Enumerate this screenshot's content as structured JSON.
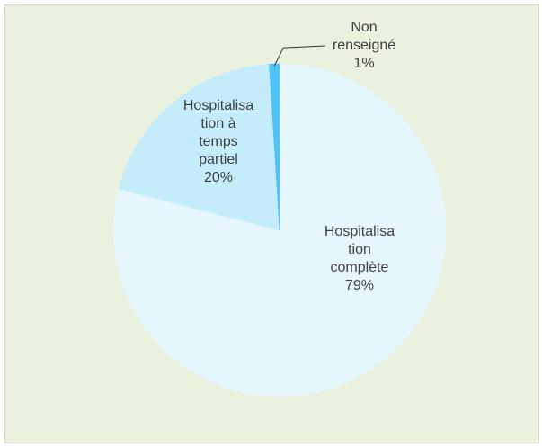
{
  "chart_data": {
    "type": "pie",
    "title": "",
    "slices": [
      {
        "label_lines": [
          "Hospitalisa",
          "tion",
          "complète"
        ],
        "percent_label": "79%",
        "value": 79,
        "color": "#e5f6fd"
      },
      {
        "label_lines": [
          "Hospitalisa",
          "tion à",
          "temps",
          "partiel"
        ],
        "percent_label": "20%",
        "value": 20,
        "color": "#c4ecfb"
      },
      {
        "label_lines": [
          "Non",
          "renseigné"
        ],
        "percent_label": "1%",
        "value": 1,
        "color": "#4fc3f7"
      }
    ],
    "start_angle_deg": 0,
    "direction": "clockwise",
    "background_color": "#ebf1df",
    "label_color": "#404040"
  }
}
